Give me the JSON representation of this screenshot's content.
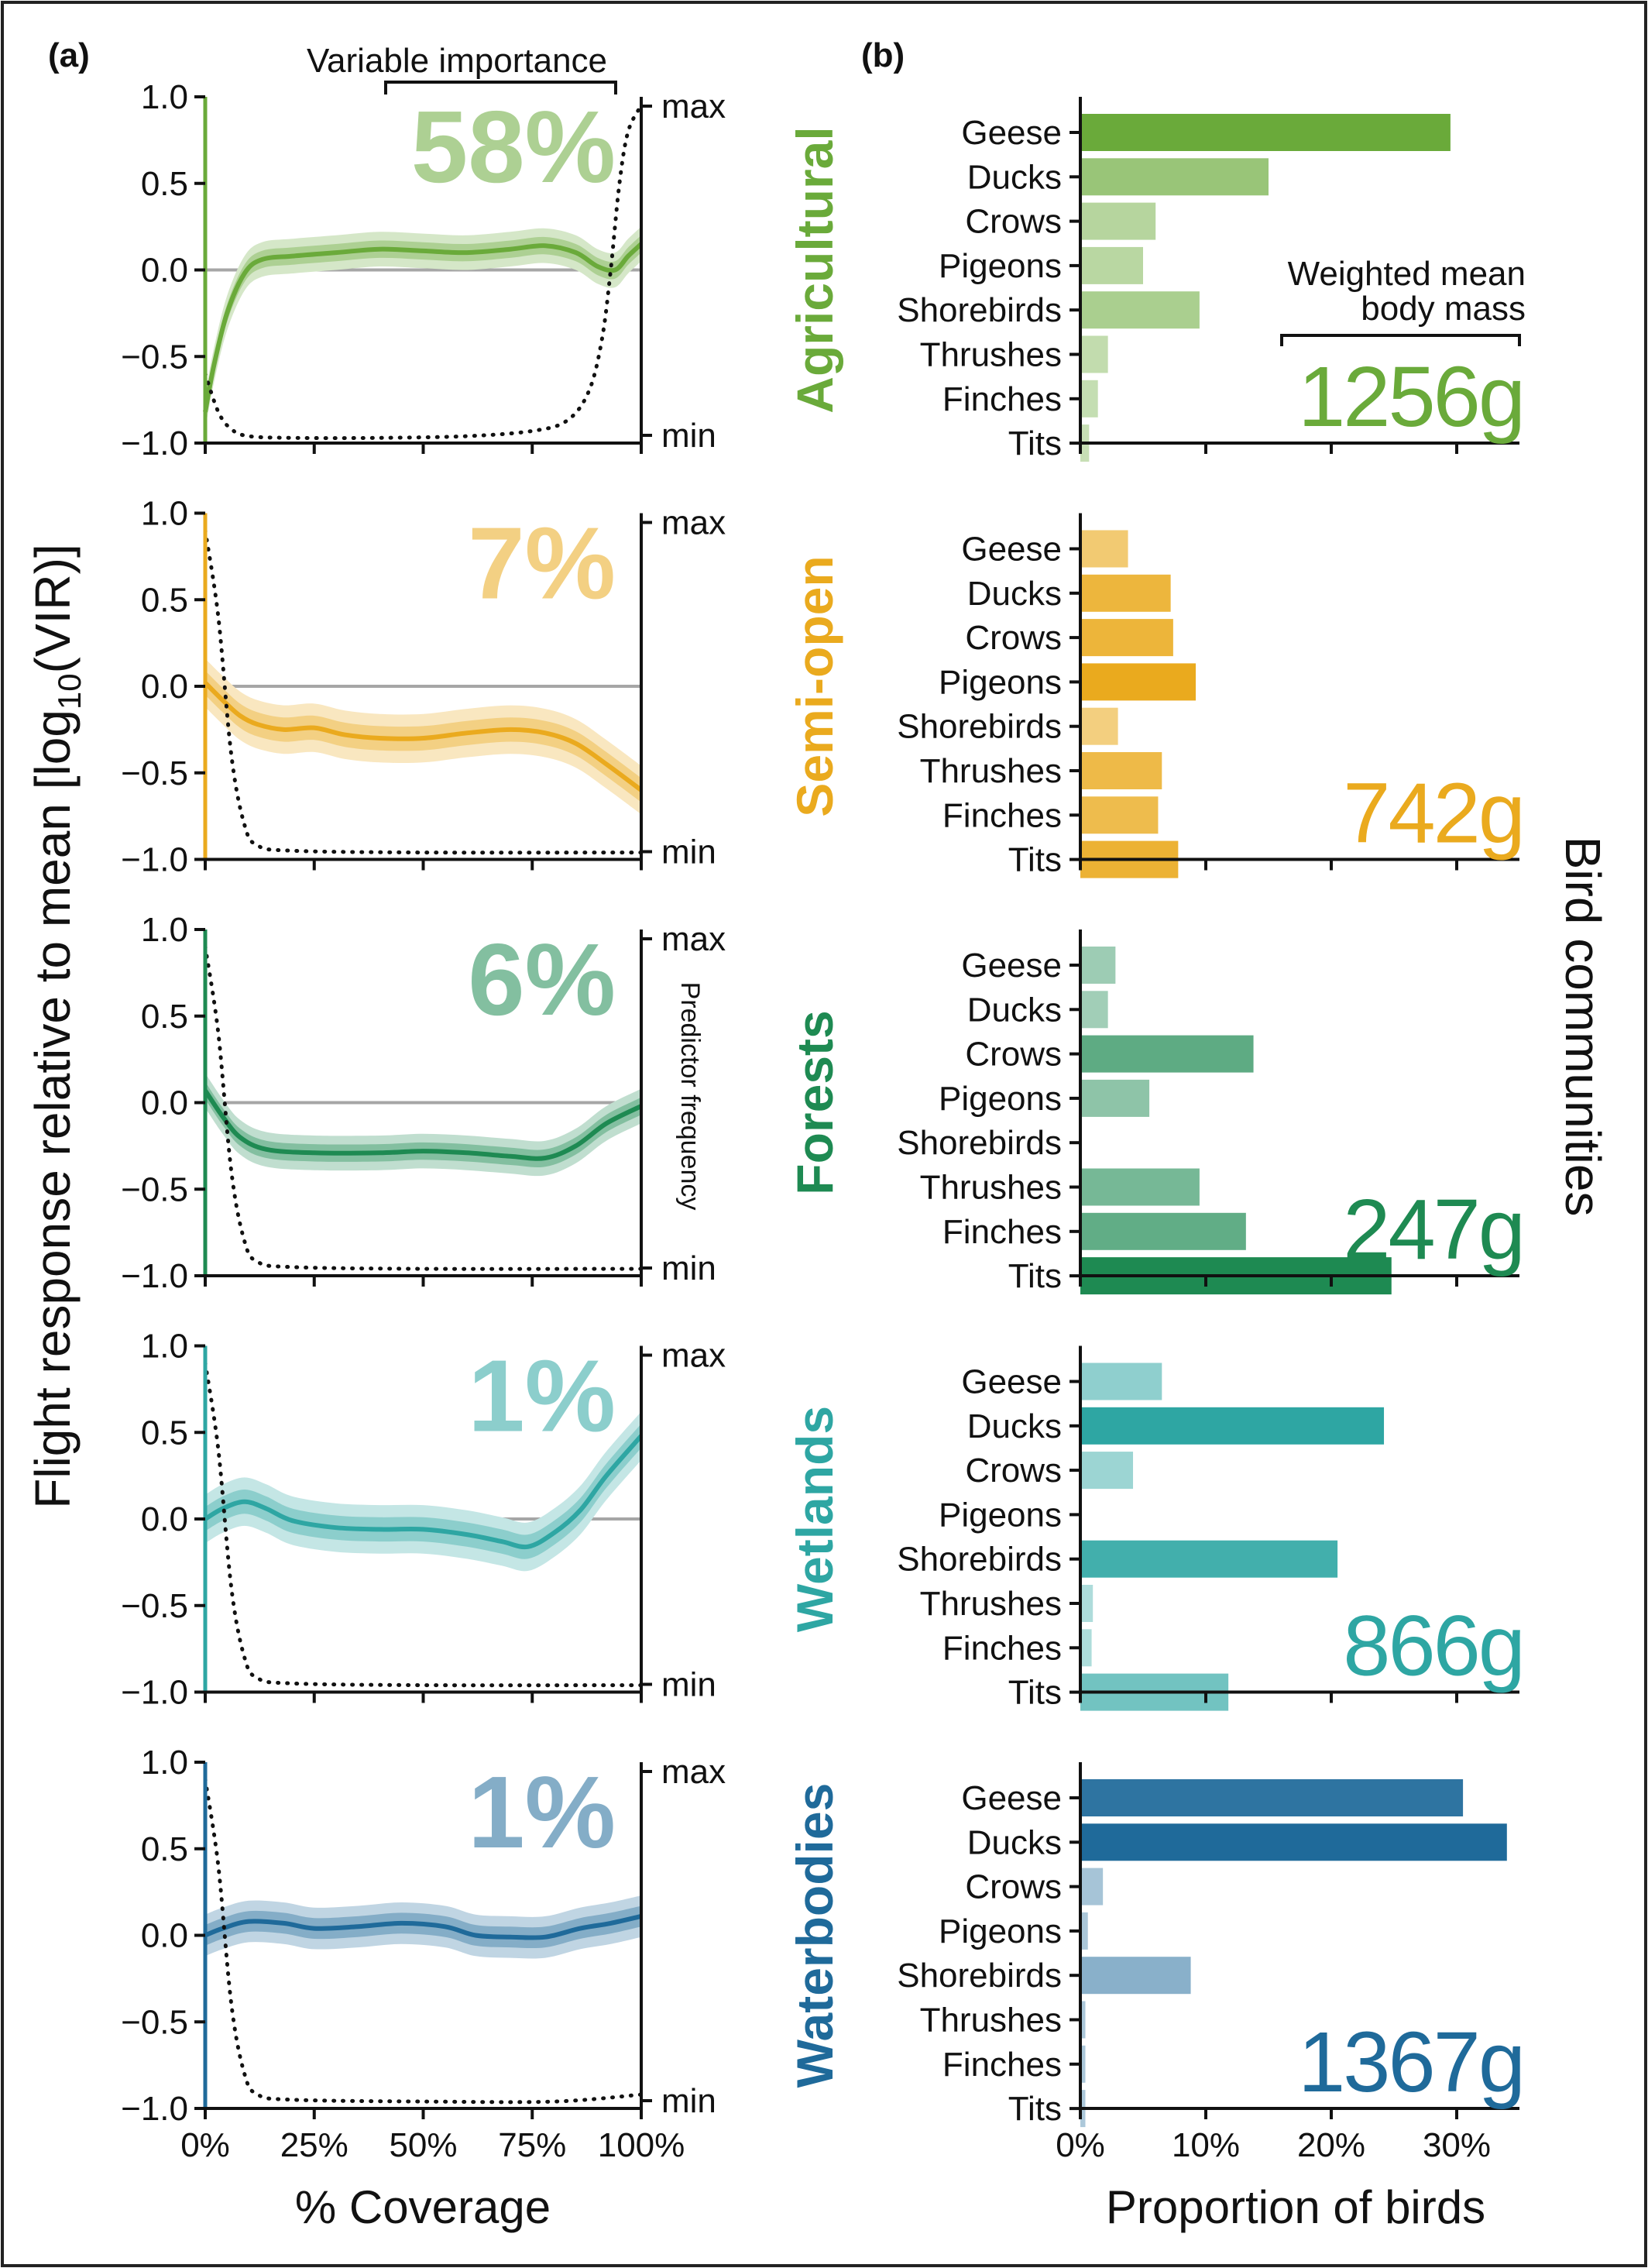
{
  "labels": {
    "panel_a": "(a)",
    "panel_b": "(b)",
    "variable_importance": "Variable importance",
    "y_axis": "Flight response relative to mean [log",
    "y_axis_sub": "10",
    "y_axis_tail": "(VIR)]",
    "x_axis_left": "% Coverage",
    "x_axis_right": "Proportion of birds",
    "right_side": "Bird communities",
    "predictor_frequency": "Predictor frequency",
    "weighted_mean_line1": "Weighted mean",
    "weighted_mean_line2": "body mass",
    "max": "max",
    "min": "min"
  },
  "chart_data": {
    "left": {
      "type": "line",
      "xlabel": "% Coverage",
      "ylabel": "Flight response relative to mean [log10(VIR)]",
      "xlim": [
        0,
        100
      ],
      "ylim": [
        -1.0,
        1.0
      ],
      "yticks": [
        "1.0",
        "0.5",
        "0.0",
        "−0.5",
        "−1.0"
      ],
      "ytick_values": [
        1.0,
        0.5,
        0.0,
        -0.5,
        -1.0
      ],
      "xticks": [
        "0%",
        "25%",
        "50%",
        "75%",
        "100%"
      ],
      "xtick_values": [
        0,
        25,
        50,
        75,
        100
      ]
    },
    "right": {
      "type": "bar",
      "orientation": "horizontal",
      "xlabel": "Proportion of birds",
      "xlim": [
        0,
        35
      ],
      "xticks": [
        "0%",
        "10%",
        "20%",
        "30%"
      ],
      "xtick_values": [
        0,
        10,
        20,
        30
      ]
    },
    "categories": [
      "Geese",
      "Ducks",
      "Crows",
      "Pigeons",
      "Shorebirds",
      "Thrushes",
      "Finches",
      "Tits"
    ],
    "communities": [
      {
        "name": "Agricultural",
        "color": "#6aaa3a",
        "importance": "58%",
        "body_mass": "1256g",
        "proportions": [
          29.5,
          15.0,
          6.0,
          5.0,
          9.5,
          2.2,
          1.4,
          0.7
        ],
        "response": [
          [
            0,
            -0.82
          ],
          [
            2,
            -0.55
          ],
          [
            5,
            -0.25
          ],
          [
            9,
            -0.02
          ],
          [
            13,
            0.06
          ],
          [
            20,
            0.08
          ],
          [
            30,
            0.1
          ],
          [
            40,
            0.12
          ],
          [
            50,
            0.11
          ],
          [
            60,
            0.1
          ],
          [
            70,
            0.12
          ],
          [
            78,
            0.14
          ],
          [
            85,
            0.1
          ],
          [
            90,
            0.02
          ],
          [
            94,
            0.0
          ],
          [
            97,
            0.08
          ],
          [
            100,
            0.15
          ]
        ],
        "frequency": [
          [
            0,
            -0.6
          ],
          [
            3,
            -0.82
          ],
          [
            6,
            -0.92
          ],
          [
            10,
            -0.96
          ],
          [
            20,
            -0.97
          ],
          [
            40,
            -0.97
          ],
          [
            60,
            -0.96
          ],
          [
            75,
            -0.93
          ],
          [
            83,
            -0.87
          ],
          [
            88,
            -0.7
          ],
          [
            91,
            -0.4
          ],
          [
            93,
            0.0
          ],
          [
            95,
            0.5
          ],
          [
            97,
            0.8
          ],
          [
            100,
            0.95
          ]
        ],
        "band": 0.05
      },
      {
        "name": "Semi-open",
        "color": "#eaaa1e",
        "importance": "7%",
        "body_mass": "742g",
        "proportions": [
          3.8,
          7.2,
          7.4,
          9.2,
          3.0,
          6.5,
          6.2,
          7.8
        ],
        "response": [
          [
            0,
            0.02
          ],
          [
            4,
            -0.08
          ],
          [
            8,
            -0.17
          ],
          [
            12,
            -0.22
          ],
          [
            18,
            -0.25
          ],
          [
            25,
            -0.24
          ],
          [
            32,
            -0.28
          ],
          [
            40,
            -0.3
          ],
          [
            50,
            -0.3
          ],
          [
            60,
            -0.27
          ],
          [
            70,
            -0.25
          ],
          [
            78,
            -0.27
          ],
          [
            85,
            -0.33
          ],
          [
            92,
            -0.45
          ],
          [
            100,
            -0.6
          ]
        ],
        "frequency": [
          [
            0,
            0.9
          ],
          [
            3,
            0.4
          ],
          [
            6,
            -0.4
          ],
          [
            9,
            -0.8
          ],
          [
            12,
            -0.92
          ],
          [
            20,
            -0.95
          ],
          [
            50,
            -0.96
          ],
          [
            100,
            -0.96
          ]
        ],
        "band": 0.07
      },
      {
        "name": "Forests",
        "color": "#1e8a52",
        "importance": "6%",
        "body_mass": "247g",
        "proportions": [
          2.8,
          2.2,
          13.8,
          5.5,
          0.0,
          9.5,
          13.2,
          24.8
        ],
        "response": [
          [
            0,
            0.07
          ],
          [
            4,
            -0.08
          ],
          [
            8,
            -0.2
          ],
          [
            14,
            -0.27
          ],
          [
            25,
            -0.29
          ],
          [
            40,
            -0.29
          ],
          [
            50,
            -0.28
          ],
          [
            60,
            -0.29
          ],
          [
            70,
            -0.31
          ],
          [
            78,
            -0.32
          ],
          [
            85,
            -0.25
          ],
          [
            92,
            -0.12
          ],
          [
            100,
            -0.02
          ]
        ],
        "frequency": [
          [
            0,
            0.9
          ],
          [
            3,
            0.4
          ],
          [
            6,
            -0.4
          ],
          [
            9,
            -0.8
          ],
          [
            12,
            -0.92
          ],
          [
            20,
            -0.95
          ],
          [
            50,
            -0.96
          ],
          [
            100,
            -0.96
          ]
        ],
        "band": 0.05
      },
      {
        "name": "Wetlands",
        "color": "#2ea6a3",
        "importance": "1%",
        "body_mass": "866g",
        "proportions": [
          6.5,
          24.2,
          4.2,
          0.0,
          20.5,
          1.0,
          0.9,
          11.8
        ],
        "response": [
          [
            0,
            0.0
          ],
          [
            4,
            0.06
          ],
          [
            9,
            0.1
          ],
          [
            14,
            0.06
          ],
          [
            20,
            -0.01
          ],
          [
            30,
            -0.05
          ],
          [
            40,
            -0.06
          ],
          [
            50,
            -0.06
          ],
          [
            60,
            -0.09
          ],
          [
            68,
            -0.13
          ],
          [
            74,
            -0.16
          ],
          [
            80,
            -0.08
          ],
          [
            86,
            0.05
          ],
          [
            92,
            0.25
          ],
          [
            100,
            0.48
          ]
        ],
        "frequency": [
          [
            0,
            0.9
          ],
          [
            3,
            0.4
          ],
          [
            6,
            -0.4
          ],
          [
            9,
            -0.8
          ],
          [
            12,
            -0.92
          ],
          [
            20,
            -0.95
          ],
          [
            50,
            -0.96
          ],
          [
            100,
            -0.96
          ]
        ],
        "band": 0.07
      },
      {
        "name": "Waterbodies",
        "color": "#1f6a9a",
        "importance": "1%",
        "body_mass": "1367g",
        "proportions": [
          30.5,
          34.0,
          1.8,
          0.6,
          8.8,
          0.4,
          0.4,
          0.4
        ],
        "response": [
          [
            0,
            0.0
          ],
          [
            4,
            0.04
          ],
          [
            10,
            0.08
          ],
          [
            18,
            0.07
          ],
          [
            25,
            0.04
          ],
          [
            35,
            0.05
          ],
          [
            45,
            0.07
          ],
          [
            55,
            0.05
          ],
          [
            62,
            0.0
          ],
          [
            70,
            -0.01
          ],
          [
            78,
            -0.01
          ],
          [
            86,
            0.04
          ],
          [
            93,
            0.07
          ],
          [
            100,
            0.11
          ]
        ],
        "frequency": [
          [
            0,
            0.9
          ],
          [
            3,
            0.4
          ],
          [
            6,
            -0.4
          ],
          [
            9,
            -0.8
          ],
          [
            12,
            -0.92
          ],
          [
            20,
            -0.95
          ],
          [
            50,
            -0.96
          ],
          [
            80,
            -0.96
          ],
          [
            100,
            -0.92
          ]
        ],
        "band": 0.06
      }
    ]
  }
}
